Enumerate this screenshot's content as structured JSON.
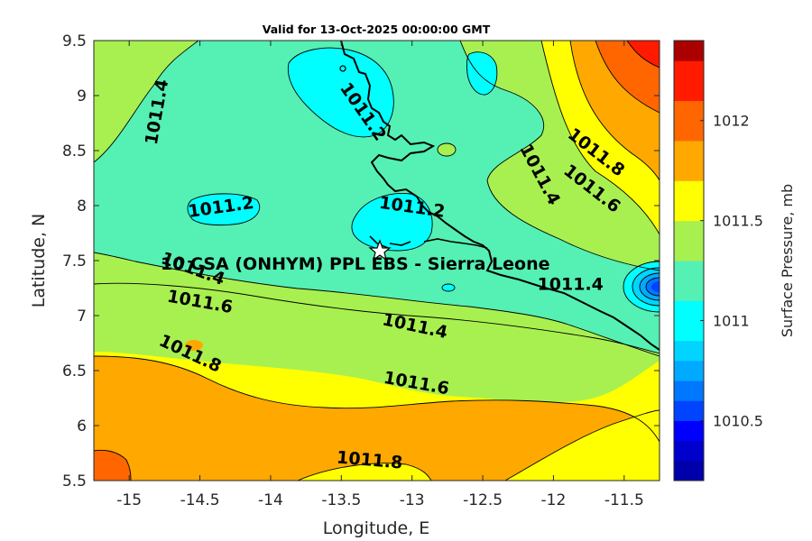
{
  "title": "Valid for 13-Oct-2025 00:00:00 GMT",
  "x_axis_label": "Longitude, E",
  "y_axis_label": "Latitude, N",
  "colorbar_label": "Surface Pressure, mb",
  "site_label": "10 CSA (ONHYM) PPL EBS  - Sierra Leone",
  "chart_data": {
    "type": "heatmap",
    "subtype": "filled-contour-map",
    "title": "Valid for 13-Oct-2025 00:00:00 GMT",
    "xlabel": "Longitude, E",
    "ylabel": "Latitude, N",
    "xlim": [
      -15.25,
      -11.25
    ],
    "ylim": [
      5.5,
      9.5
    ],
    "x_ticks": [
      -15,
      -14.5,
      -14,
      -13.5,
      -13,
      -12.5,
      -12,
      -11.5
    ],
    "x_tick_labels": [
      "-15",
      "-14.5",
      "-14",
      "-13.5",
      "-13",
      "-12.5",
      "-12",
      "-11.5"
    ],
    "y_ticks": [
      5.5,
      6,
      6.5,
      7,
      7.5,
      8,
      8.5,
      9,
      9.5
    ],
    "y_tick_labels": [
      "5.5",
      "6",
      "6.5",
      "7",
      "7.5",
      "8",
      "8.5",
      "9",
      "9.5"
    ],
    "colorbar": {
      "label": "Surface Pressure, mb",
      "range": [
        1010.2,
        1012.4
      ],
      "ticks": [
        1010.5,
        1011,
        1011.5,
        1012
      ],
      "tick_labels": [
        "1010.5",
        "1011",
        "1011.5",
        "1012"
      ],
      "levels": [
        1010.2,
        1010.3,
        1010.4,
        1010.5,
        1010.6,
        1010.7,
        1010.8,
        1010.9,
        1011.0,
        1011.1,
        1011.2,
        1011.3,
        1011.4,
        1011.5,
        1011.6,
        1011.7,
        1011.8,
        1011.9,
        1012.0,
        1012.1,
        1012.2,
        1012.3,
        1012.4
      ],
      "colors": [
        "#0000aa",
        "#0000cc",
        "#0000ff",
        "#0044ff",
        "#0077ff",
        "#00aaff",
        "#00d4ff",
        "#00ffff",
        "#00ffff",
        "#55f0b4",
        "#55f0b4",
        "#a8f050",
        "#a8f050",
        "#ffff00",
        "#ffff00",
        "#ffa800",
        "#ffa800",
        "#ff6600",
        "#ff6600",
        "#ff1a00",
        "#ff1a00",
        "#aa0000"
      ]
    },
    "contour_labels": [
      {
        "text": "1011.4",
        "lon": -14.8,
        "lat": 8.85,
        "angle": -80
      },
      {
        "text": "1011.2",
        "lon": -13.35,
        "lat": 8.85,
        "angle": 55
      },
      {
        "text": "1011.2",
        "lon": -14.35,
        "lat": 7.98,
        "angle": -8
      },
      {
        "text": "1011.2",
        "lon": -13.0,
        "lat": 7.98,
        "angle": 8
      },
      {
        "text": "1011.4",
        "lon": -12.1,
        "lat": 8.28,
        "angle": 62
      },
      {
        "text": "1011.8",
        "lon": -11.7,
        "lat": 8.48,
        "angle": 38
      },
      {
        "text": "1011.6",
        "lon": -11.73,
        "lat": 8.15,
        "angle": 38
      },
      {
        "text": "1011.4",
        "lon": -14.55,
        "lat": 7.42,
        "angle": 20
      },
      {
        "text": "1011.4",
        "lon": -11.88,
        "lat": 7.28,
        "angle": 0
      },
      {
        "text": "1011.6",
        "lon": -14.5,
        "lat": 7.12,
        "angle": 10
      },
      {
        "text": "1011.4",
        "lon": -12.98,
        "lat": 6.9,
        "angle": 12
      },
      {
        "text": "1011.8",
        "lon": -14.57,
        "lat": 6.65,
        "angle": 25
      },
      {
        "text": "1011.6",
        "lon": -12.97,
        "lat": 6.38,
        "angle": 10
      },
      {
        "text": "1011.8",
        "lon": -13.3,
        "lat": 5.68,
        "angle": 5
      }
    ],
    "site": {
      "name": "10 CSA (ONHYM) PPL EBS  - Sierra Leone",
      "lon": -13.23,
      "lat": 7.58,
      "marker": "star"
    },
    "grid": false,
    "legend": "none"
  }
}
